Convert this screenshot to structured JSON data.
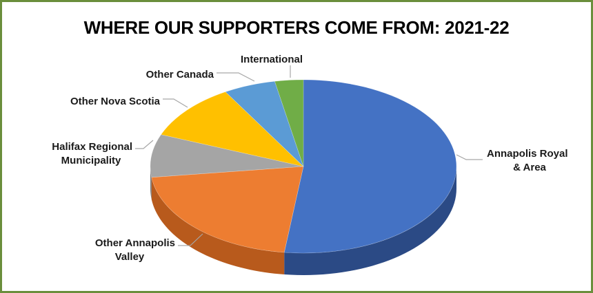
{
  "chart_data": {
    "type": "pie",
    "title": "WHERE OUR SUPPORTERS COME FROM: 2021-22",
    "slices": [
      {
        "label": "Annapolis Royal\n& Area",
        "value": 52,
        "color": "#4472c4",
        "side": "#2b4a85"
      },
      {
        "label": "Other Annapolis\nValley",
        "value": 21,
        "color": "#ed7d31",
        "side": "#b85a1c"
      },
      {
        "label": "Halifax Regional\nMunicipality",
        "value": 8,
        "color": "#a5a5a5",
        "side": "#7a7a7a"
      },
      {
        "label": "Other Nova Scotia",
        "value": 10.5,
        "color": "#ffc000",
        "side": "#c99700"
      },
      {
        "label": "Other Canada",
        "value": 5.5,
        "color": "#5b9bd5",
        "side": "#3e78ad"
      },
      {
        "label": "International",
        "value": 3,
        "color": "#70ad47",
        "side": "#4f8030"
      }
    ],
    "legend": "none",
    "data_labels": "category names outside with leader lines"
  }
}
